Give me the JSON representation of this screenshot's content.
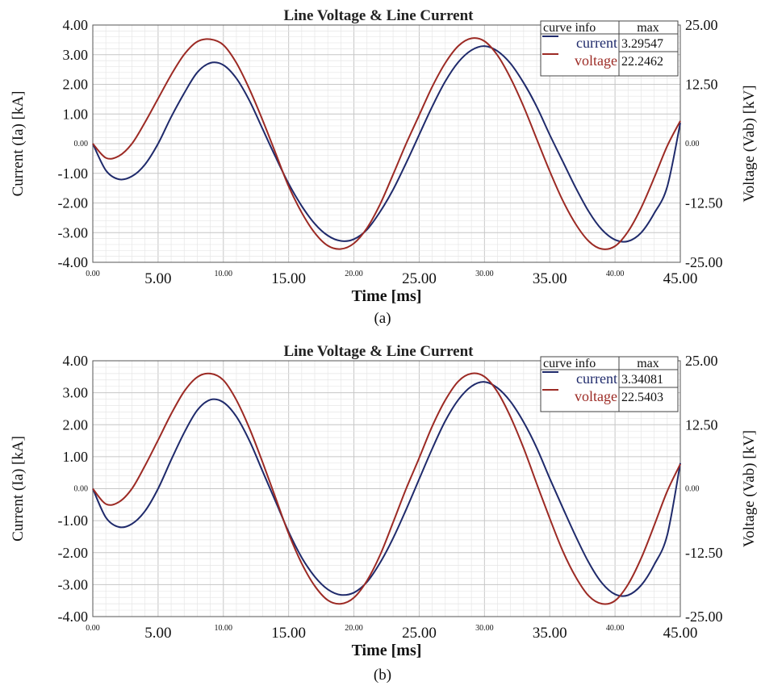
{
  "chart_data": [
    {
      "type": "line",
      "title": "Line Voltage & Line Current",
      "caption": "(a)",
      "xlabel": "Time [ms]",
      "ylabel": "Current (Ia) [kA]",
      "y2label": "Voltage (Vab) [kV]",
      "xlim": [
        0,
        45
      ],
      "ylim": [
        -4,
        4
      ],
      "y2lim": [
        -25,
        25
      ],
      "x_ticks": [
        "0.00",
        "5.00",
        "10.00",
        "15.00",
        "20.00",
        "25.00",
        "30.00",
        "35.00",
        "40.00",
        "45.00"
      ],
      "y_ticks": [
        "4.00",
        "3.00",
        "2.00",
        "1.00",
        "0.00",
        "-1.00",
        "-2.00",
        "-3.00",
        "-4.00"
      ],
      "y2_ticks": [
        "25.00",
        "12.50",
        "0.00",
        "-12.50",
        "-25.00"
      ],
      "grid": true,
      "legend_position": "top-right",
      "legend_headers": [
        "curve info",
        "max"
      ],
      "series": [
        {
          "name": "current",
          "axis": "left",
          "color": "#1f2a6b",
          "max": "3.29547",
          "x": [
            0,
            1,
            2,
            3,
            4,
            5,
            6,
            7,
            8,
            9,
            10,
            11,
            12,
            13,
            14,
            15,
            16,
            17,
            18,
            19,
            20,
            21,
            22,
            23,
            24,
            25,
            26,
            27,
            28,
            29,
            30,
            31,
            32,
            33,
            34,
            35,
            36,
            37,
            38,
            39,
            40,
            41,
            42,
            43,
            44,
            45
          ],
          "values": [
            0.0,
            -0.9,
            -1.2,
            -1.1,
            -0.7,
            0.0,
            0.9,
            1.7,
            2.4,
            2.72,
            2.65,
            2.2,
            1.45,
            0.5,
            -0.45,
            -1.35,
            -2.1,
            -2.7,
            -3.1,
            -3.28,
            -3.22,
            -2.9,
            -2.3,
            -1.55,
            -0.65,
            0.3,
            1.25,
            2.1,
            2.75,
            3.15,
            3.29,
            3.12,
            2.7,
            2.05,
            1.25,
            0.3,
            -0.6,
            -1.5,
            -2.3,
            -2.9,
            -3.24,
            -3.29,
            -3.0,
            -2.35,
            -1.45,
            0.7
          ]
        },
        {
          "name": "voltage",
          "axis": "right",
          "color": "#9c2a24",
          "max": "22.2462",
          "x": [
            0,
            1,
            2,
            3,
            4,
            5,
            6,
            7,
            8,
            9,
            10,
            11,
            12,
            13,
            14,
            15,
            16,
            17,
            18,
            19,
            20,
            21,
            22,
            23,
            24,
            25,
            26,
            27,
            28,
            29,
            30,
            31,
            32,
            33,
            34,
            35,
            36,
            37,
            38,
            39,
            40,
            41,
            42,
            43,
            44,
            45
          ],
          "values": [
            0.0,
            -3.0,
            -2.6,
            0.0,
            4.5,
            9.5,
            14.5,
            18.8,
            21.5,
            22.0,
            20.8,
            17.0,
            11.5,
            5.0,
            -2.0,
            -9.0,
            -14.5,
            -18.8,
            -21.5,
            -22.2,
            -21.0,
            -17.8,
            -12.8,
            -6.5,
            0.0,
            6.0,
            12.0,
            17.0,
            20.6,
            22.2,
            21.6,
            18.6,
            13.8,
            7.8,
            1.0,
            -5.8,
            -12.0,
            -17.0,
            -20.6,
            -22.2,
            -21.6,
            -18.5,
            -13.5,
            -7.2,
            -0.5,
            4.8
          ]
        }
      ]
    },
    {
      "type": "line",
      "title": "Line Voltage & Line Current",
      "caption": "(b)",
      "xlabel": "Time [ms]",
      "ylabel": "Current (Ia) [kA]",
      "y2label": "Voltage (Vab) [kV]",
      "xlim": [
        0,
        45
      ],
      "ylim": [
        -4,
        4
      ],
      "y2lim": [
        -25,
        25
      ],
      "x_ticks": [
        "0.00",
        "5.00",
        "10.00",
        "15.00",
        "20.00",
        "25.00",
        "30.00",
        "35.00",
        "40.00",
        "45.00"
      ],
      "y_ticks": [
        "4.00",
        "3.00",
        "2.00",
        "1.00",
        "0.00",
        "-1.00",
        "-2.00",
        "-3.00",
        "-4.00"
      ],
      "y2_ticks": [
        "25.00",
        "12.50",
        "0.00",
        "-12.50",
        "-25.00"
      ],
      "grid": true,
      "legend_position": "top-right",
      "legend_headers": [
        "curve info",
        "max"
      ],
      "series": [
        {
          "name": "current",
          "axis": "left",
          "color": "#1f2a6b",
          "max": "3.34081",
          "x": [
            0,
            1,
            2,
            3,
            4,
            5,
            6,
            7,
            8,
            9,
            10,
            11,
            12,
            13,
            14,
            15,
            16,
            17,
            18,
            19,
            20,
            21,
            22,
            23,
            24,
            25,
            26,
            27,
            28,
            29,
            30,
            31,
            32,
            33,
            34,
            35,
            36,
            37,
            38,
            39,
            40,
            41,
            42,
            43,
            44,
            45
          ],
          "values": [
            0.0,
            -0.9,
            -1.2,
            -1.1,
            -0.7,
            0.0,
            0.9,
            1.75,
            2.45,
            2.78,
            2.7,
            2.25,
            1.5,
            0.55,
            -0.4,
            -1.35,
            -2.15,
            -2.75,
            -3.15,
            -3.32,
            -3.25,
            -2.92,
            -2.32,
            -1.55,
            -0.65,
            0.3,
            1.25,
            2.12,
            2.78,
            3.2,
            3.34,
            3.15,
            2.72,
            2.08,
            1.28,
            0.32,
            -0.6,
            -1.5,
            -2.32,
            -2.95,
            -3.3,
            -3.33,
            -3.02,
            -2.38,
            -1.45,
            0.8
          ]
        },
        {
          "name": "voltage",
          "axis": "right",
          "color": "#9c2a24",
          "max": "22.5403",
          "x": [
            0,
            1,
            2,
            3,
            4,
            5,
            6,
            7,
            8,
            9,
            10,
            11,
            12,
            13,
            14,
            15,
            16,
            17,
            18,
            19,
            20,
            21,
            22,
            23,
            24,
            25,
            26,
            27,
            28,
            29,
            30,
            31,
            32,
            33,
            34,
            35,
            36,
            37,
            38,
            39,
            40,
            41,
            42,
            43,
            44,
            45
          ],
          "values": [
            0.0,
            -3.0,
            -2.6,
            0.0,
            4.5,
            9.5,
            14.6,
            19.0,
            21.8,
            22.5,
            21.2,
            17.3,
            11.8,
            5.2,
            -1.8,
            -8.8,
            -14.6,
            -19.0,
            -21.8,
            -22.5,
            -21.3,
            -18.0,
            -13.0,
            -6.6,
            0.0,
            6.0,
            12.2,
            17.3,
            21.0,
            22.5,
            21.9,
            18.9,
            14.0,
            7.9,
            1.0,
            -5.8,
            -12.2,
            -17.3,
            -21.0,
            -22.5,
            -21.9,
            -18.7,
            -13.6,
            -7.2,
            -0.5,
            4.8
          ]
        }
      ]
    }
  ]
}
